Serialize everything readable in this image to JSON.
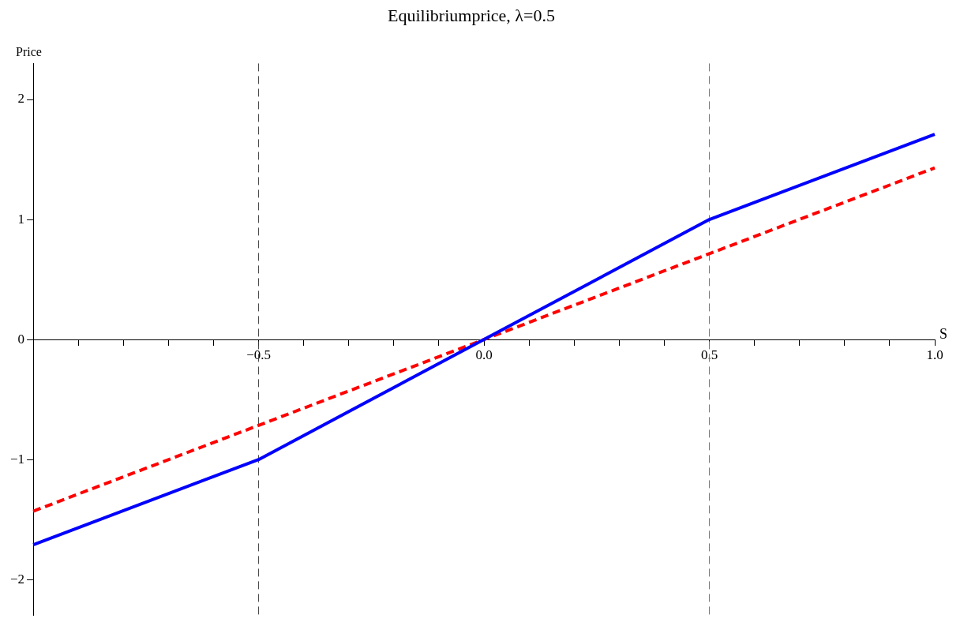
{
  "chart_data": {
    "type": "line",
    "title": "Equilibriumprice, λ=0.5",
    "xlabel": "S",
    "ylabel": "Price",
    "series": [
      {
        "color": "#0000ff",
        "x": [
          -1,
          -0.5,
          0,
          0.5,
          1
        ],
        "values": [
          -1.71,
          -1,
          0,
          1,
          1.71
        ],
        "line_style": "solid"
      },
      {
        "color": "#ff0000",
        "x": [
          -1,
          0,
          1
        ],
        "values": [
          -1.43,
          0,
          1.43
        ],
        "line_style": "dashed"
      }
    ],
    "xlim": [
      -1,
      1
    ],
    "ylim": [
      -2.3,
      2.3
    ],
    "xticks": [
      {
        "value": -0.9,
        "label": null
      },
      {
        "value": -0.8,
        "label": null
      },
      {
        "value": -0.7,
        "label": null
      },
      {
        "value": -0.6,
        "label": null
      },
      {
        "value": -0.5,
        "label": "−0.5"
      },
      {
        "value": -0.4,
        "label": null
      },
      {
        "value": -0.3,
        "label": null
      },
      {
        "value": -0.2,
        "label": null
      },
      {
        "value": -0.1,
        "label": null
      },
      {
        "value": 0,
        "label": "0.0"
      },
      {
        "value": 0.1,
        "label": null
      },
      {
        "value": 0.2,
        "label": null
      },
      {
        "value": 0.3,
        "label": null
      },
      {
        "value": 0.4,
        "label": null
      },
      {
        "value": 0.5,
        "label": "0.5"
      },
      {
        "value": 0.6,
        "label": null
      },
      {
        "value": 0.7,
        "label": null
      },
      {
        "value": 0.8,
        "label": null
      },
      {
        "value": 0.9,
        "label": null
      },
      {
        "value": 1,
        "label": "1.0"
      }
    ],
    "yticks": [
      {
        "value": -2,
        "label": "−2"
      },
      {
        "value": -1,
        "label": "−1"
      },
      0,
      1,
      2
    ],
    "ref_lines": [
      {
        "axis": "x",
        "value": -0.5,
        "color": "#404040",
        "line_style": "dashed"
      },
      {
        "axis": "x",
        "value": 0.5,
        "color": "#7070c0",
        "line_style": "dashed"
      }
    ],
    "grid": false,
    "legend": false,
    "marker": "none"
  }
}
